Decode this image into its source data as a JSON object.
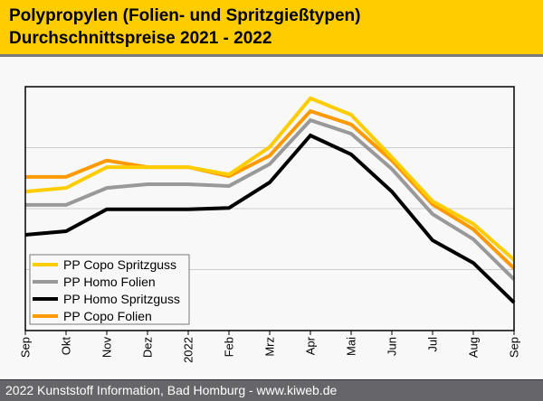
{
  "header": {
    "title_line1": "Polypropylen (Folien- und Spritzgießtypen)",
    "title_line2": "Durchschnittspreise 2021 - 2022"
  },
  "footer": {
    "text": " 2022 Kunststoff Information, Bad Homburg - www.kiweb.de"
  },
  "colors": {
    "header_bg": "#ffcc00",
    "footer_bg": "#66666a"
  },
  "chart_data": {
    "type": "line",
    "title": "Polypropylen (Folien- und Spritzgießtypen) Durchschnittspreise 2021 - 2022",
    "xlabel": "",
    "ylabel": "",
    "categories": [
      "Sep",
      "Okt",
      "Nov",
      "Dez",
      "2022",
      "Feb",
      "Mrz",
      "Apr",
      "Mai",
      "Jun",
      "Jul",
      "Aug",
      "Sep"
    ],
    "ylim": [
      0,
      4
    ],
    "y_gridlines": [
      1,
      2,
      3
    ],
    "grid": true,
    "y_tick_labels_shown": false,
    "legend_position": "bottom-left",
    "series": [
      {
        "name": "PP Copo Spritzguss",
        "color": "#ffcc00",
        "values": [
          2.28,
          2.34,
          2.68,
          2.68,
          2.68,
          2.56,
          3.01,
          3.81,
          3.54,
          2.84,
          2.12,
          1.75,
          1.16
        ]
      },
      {
        "name": "PP Homo Folien",
        "color": "#999999",
        "values": [
          2.06,
          2.06,
          2.34,
          2.4,
          2.4,
          2.37,
          2.73,
          3.45,
          3.23,
          2.65,
          1.91,
          1.5,
          0.84
        ]
      },
      {
        "name": "PP Homo Spritzguss",
        "color": "#000000",
        "values": [
          1.57,
          1.63,
          1.99,
          1.99,
          1.99,
          2.01,
          2.43,
          3.2,
          2.89,
          2.28,
          1.48,
          1.11,
          0.46
        ]
      },
      {
        "name": "PP Copo Folien",
        "color": "#ff9900",
        "values": [
          2.52,
          2.52,
          2.79,
          2.68,
          2.68,
          2.53,
          2.87,
          3.6,
          3.38,
          2.79,
          2.07,
          1.66,
          1.02
        ]
      }
    ],
    "series_draw_order": [
      3,
      1,
      0,
      2
    ]
  }
}
